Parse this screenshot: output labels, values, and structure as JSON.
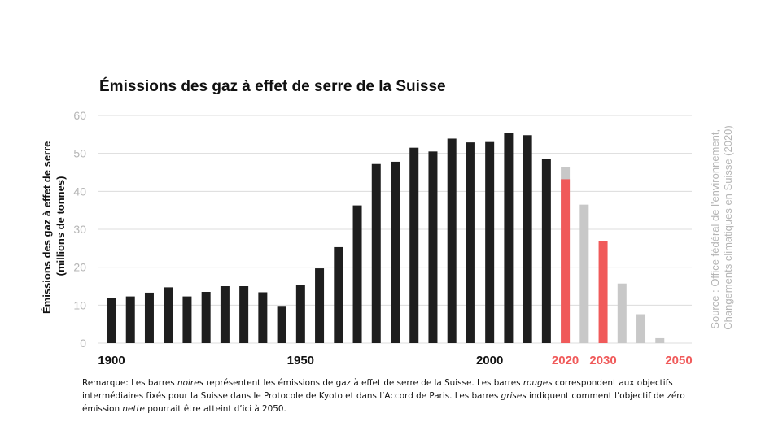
{
  "chart_data": {
    "type": "bar",
    "title": "Émissions des gaz à effet de serre de la Suisse",
    "ylabel_line1": "Émissions des gaz à effet de serre",
    "ylabel_line2": "(millions de tonnes)",
    "ylim": [
      0,
      60
    ],
    "yticks": [
      "0",
      "10",
      "20",
      "30",
      "40",
      "50",
      "60"
    ],
    "xticks": [
      {
        "label": "1900",
        "x": 1900,
        "color": "#111111"
      },
      {
        "label": "1950",
        "x": 1950,
        "color": "#111111"
      },
      {
        "label": "2000",
        "x": 2000,
        "color": "#111111"
      },
      {
        "label": "2020",
        "x": 2020,
        "color": "#f05a5a"
      },
      {
        "label": "2030",
        "x": 2030,
        "color": "#f05a5a"
      },
      {
        "label": "2050",
        "x": 2050,
        "color": "#f05a5a"
      }
    ],
    "grid": true,
    "series": [
      {
        "color": "#1e1e1e",
        "x": [
          1900,
          1905,
          1910,
          1915,
          1920,
          1925,
          1930,
          1935,
          1940,
          1945,
          1950,
          1955,
          1960,
          1965,
          1970,
          1975,
          1980,
          1985,
          1990,
          1995,
          2000,
          2005,
          2010,
          2015
        ],
        "values": [
          12,
          12.3,
          13.3,
          14.7,
          12.3,
          13.5,
          15,
          15,
          13.4,
          9.8,
          15.3,
          19.7,
          25.3,
          36.3,
          47.2,
          47.8,
          51.5,
          50.5,
          53.9,
          52.9,
          53,
          55.5,
          54.8,
          48.5
        ]
      },
      {
        "color": "#c8c8c8",
        "x": [
          2020,
          2025,
          2035,
          2040,
          2045
        ],
        "values": [
          46.5,
          36.5,
          15.7,
          7.6,
          1.3
        ]
      },
      {
        "color": "#f05a5a",
        "x": [
          2020,
          2030
        ],
        "values": [
          43.2,
          27
        ]
      }
    ],
    "source_line1": "Source : Office fédéral de l'environnement,",
    "source_line2": "Changements climatiques en Suisse (2020)"
  },
  "note": {
    "p1": "Remarque: Les barres ",
    "e1": "noires",
    "p2": " représentent les émissions de gaz à effet de serre de la Suisse. Les barres ",
    "e2": "rouges",
    "p3": " correspondent aux objectifs intermédiaires fixés pour la Suisse dans le Protocole de Kyoto et dans l’Accord de Paris. Les barres ",
    "e3": "grises",
    "p4": " indiquent comment l’objectif de zéro émission ",
    "e4": "nette",
    "p5": " pourrait être atteint d’ici à 2050."
  }
}
